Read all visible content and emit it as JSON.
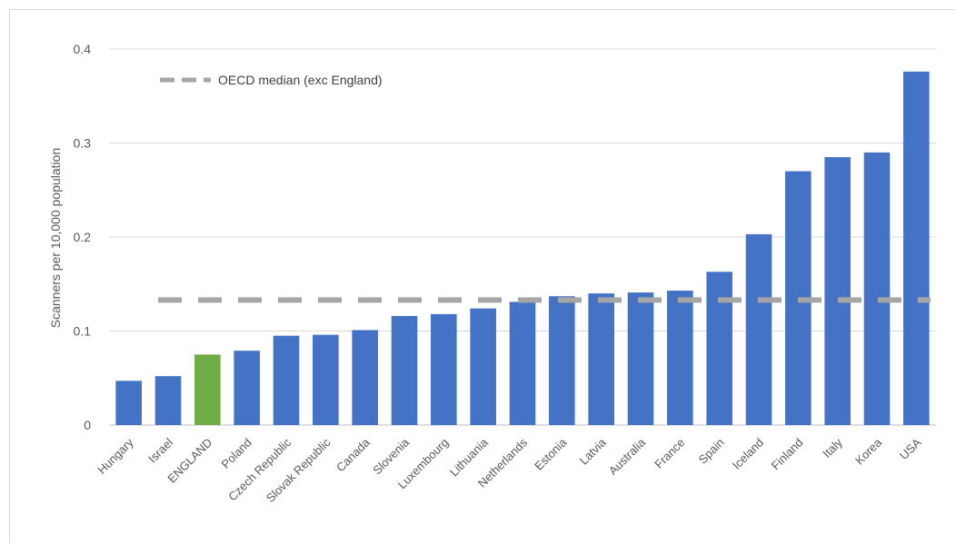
{
  "chart_data": {
    "type": "bar",
    "title": "",
    "xlabel": "",
    "ylabel": "Scanners per 10,000 population",
    "ylim": [
      0,
      0.4
    ],
    "yticks": [
      "0",
      "0.1",
      "0.2",
      "0.3",
      "0.4"
    ],
    "yticks_values": [
      0,
      0.1,
      0.2,
      0.3,
      0.4
    ],
    "grid": true,
    "legend": "top-left",
    "categories": [
      "Hungary",
      "Israel",
      "ENGLAND",
      "Poland",
      "Czech Republic",
      "Slovak Republic",
      "Canada",
      "Slovenia",
      "Luxembourg",
      "Lithuania",
      "Netherlands",
      "Estonia",
      "Latvia",
      "Australia",
      "France",
      "Spain",
      "Iceland",
      "Finland",
      "Italy",
      "Korea",
      "USA"
    ],
    "values": [
      0.047,
      0.052,
      0.075,
      0.079,
      0.095,
      0.096,
      0.101,
      0.116,
      0.118,
      0.124,
      0.131,
      0.137,
      0.14,
      0.141,
      0.143,
      0.163,
      0.203,
      0.27,
      0.285,
      0.29,
      0.376
    ],
    "highlight_category": "ENGLAND",
    "bar_color": "#4472c4",
    "highlight_color": "#70ad47",
    "reference_line": {
      "name": "OECD median (exc England)",
      "value": 0.133,
      "color": "#a6a6a6",
      "style": "dashed"
    }
  }
}
